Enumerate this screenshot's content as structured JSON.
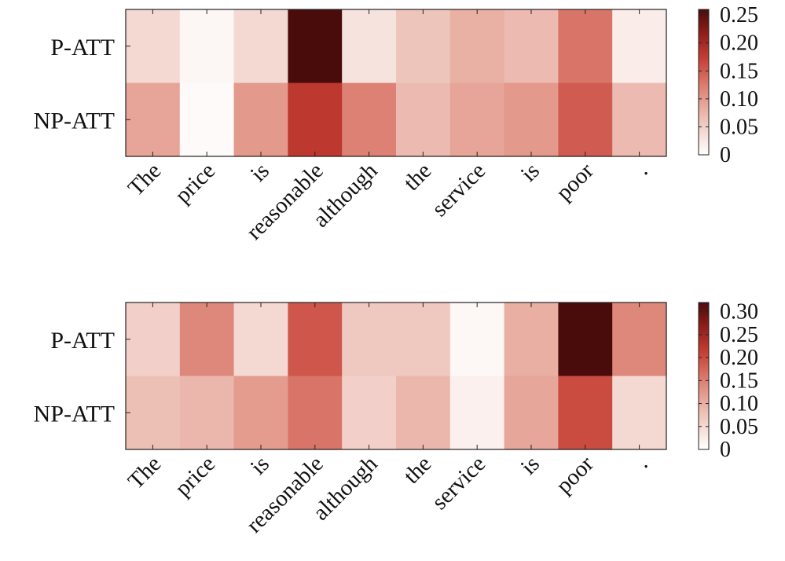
{
  "chart_data": [
    {
      "type": "heatmap",
      "title": "",
      "rows": [
        "P-ATT",
        "NP-ATT"
      ],
      "columns": [
        "The",
        "price",
        "is",
        "reasonable",
        "although",
        "the",
        "service",
        "is",
        "poor",
        "."
      ],
      "values": [
        [
          0.04,
          0.01,
          0.04,
          0.26,
          0.03,
          0.06,
          0.08,
          0.07,
          0.13,
          0.02
        ],
        [
          0.09,
          0.005,
          0.1,
          0.18,
          0.12,
          0.07,
          0.09,
          0.1,
          0.15,
          0.07
        ]
      ],
      "colorbar": {
        "min": 0,
        "max": 0.26,
        "ticks": [
          "0",
          "0.05",
          "0.10",
          "0.15",
          "0.20",
          "0.25"
        ],
        "tick_values": [
          0,
          0.05,
          0.1,
          0.15,
          0.2,
          0.25
        ]
      },
      "colormap": [
        "#ffffff",
        "#f3d6cf",
        "#e7a99c",
        "#d97568",
        "#c53d33",
        "#8f1e1b",
        "#4a0c0b"
      ]
    },
    {
      "type": "heatmap",
      "title": "",
      "rows": [
        "P-ATT",
        "NP-ATT"
      ],
      "columns": [
        "The",
        "price",
        "is",
        "reasonable",
        "although",
        "the",
        "service",
        "is",
        "poor",
        "."
      ],
      "values": [
        [
          0.06,
          0.14,
          0.05,
          0.19,
          0.07,
          0.07,
          0.01,
          0.1,
          0.32,
          0.14
        ],
        [
          0.08,
          0.09,
          0.12,
          0.16,
          0.06,
          0.09,
          0.02,
          0.11,
          0.2,
          0.05
        ]
      ],
      "colorbar": {
        "min": 0,
        "max": 0.32,
        "ticks": [
          "0",
          "0.05",
          "0.10",
          "0.15",
          "0.20",
          "0.25",
          "0.30"
        ],
        "tick_values": [
          0,
          0.05,
          0.1,
          0.15,
          0.2,
          0.25,
          0.3
        ]
      },
      "colormap": [
        "#ffffff",
        "#f3d6cf",
        "#e7a99c",
        "#d97568",
        "#c53d33",
        "#8f1e1b",
        "#4a0c0b"
      ]
    }
  ]
}
